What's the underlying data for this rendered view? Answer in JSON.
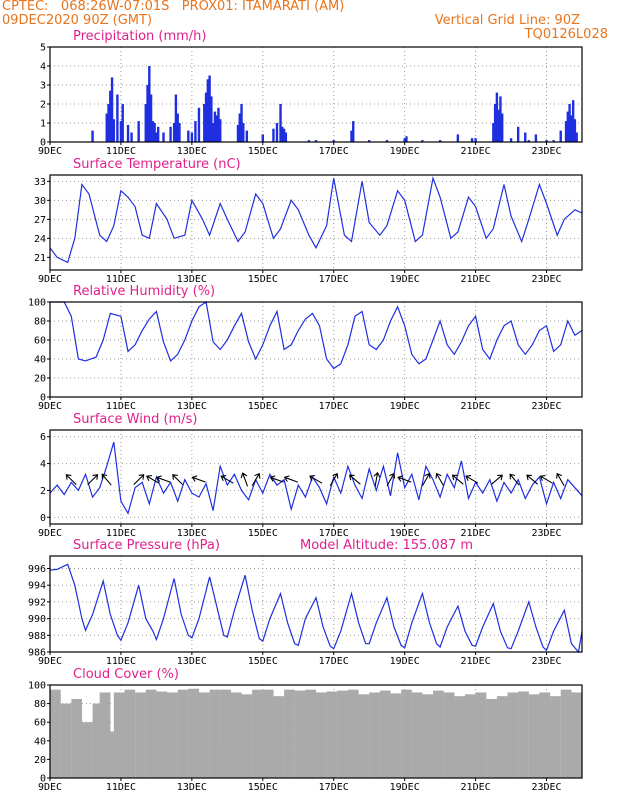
{
  "header": {
    "line1": "CPTEC:   068:26W-07:01S   PROX01: ITAMARATI (AM)",
    "line2_left": "09DEC2020 90Z (GMT)",
    "line2_right": "Vertical Grid Line: 90Z",
    "line3_right": "TQ0126L028"
  },
  "colors": {
    "line": "#1f2fe0",
    "bar": "#1f2fe0",
    "cloud": "#aaaaaa",
    "title": "#e0208c",
    "header": "#e8741c"
  },
  "x_axis": {
    "ticks": [
      9,
      11,
      13,
      15,
      17,
      19,
      21,
      23
    ],
    "labels": [
      "9DEC",
      "11DEC",
      "13DEC",
      "15DEC",
      "17DEC",
      "19DEC",
      "21DEC",
      "23DEC"
    ],
    "range": [
      9,
      24
    ]
  },
  "chart_data": [
    {
      "type": "bar",
      "title": "Precipitation (mm/h)",
      "ylim": [
        0,
        5
      ],
      "yticks": [
        0,
        1,
        2,
        3,
        4,
        5
      ],
      "x": [
        10.2,
        10.6,
        10.65,
        10.7,
        10.75,
        10.8,
        10.9,
        11.0,
        11.05,
        11.2,
        11.3,
        11.5,
        11.7,
        11.75,
        11.8,
        11.85,
        11.9,
        11.95,
        12.0,
        12.05,
        12.2,
        12.4,
        12.5,
        12.55,
        12.6,
        12.65,
        12.9,
        13.0,
        13.1,
        13.2,
        13.35,
        13.4,
        13.45,
        13.5,
        13.55,
        13.6,
        13.65,
        13.7,
        13.75,
        13.8,
        14.3,
        14.35,
        14.4,
        14.45,
        14.55,
        15.0,
        15.3,
        15.4,
        15.5,
        15.55,
        15.6,
        15.65,
        16.3,
        16.5,
        17.0,
        17.5,
        17.55,
        18.0,
        18.5,
        19.0,
        19.05,
        19.5,
        20.0,
        20.5,
        20.9,
        21.0,
        21.5,
        21.55,
        21.6,
        21.65,
        21.7,
        21.75,
        22.0,
        22.2,
        22.4,
        22.5,
        22.7,
        23.0,
        23.2,
        23.4,
        23.55,
        23.6,
        23.65,
        23.7,
        23.75,
        23.8,
        23.85
      ],
      "values": [
        0.6,
        1.5,
        2.0,
        2.7,
        3.4,
        1.2,
        2.5,
        1.1,
        2.0,
        0.9,
        0.5,
        1.1,
        2.0,
        3.0,
        4.0,
        2.5,
        1.1,
        1.0,
        0.5,
        0.8,
        0.5,
        0.8,
        1.0,
        2.5,
        1.5,
        1.0,
        0.6,
        0.5,
        1.1,
        1.8,
        2.0,
        2.6,
        3.3,
        3.5,
        2.4,
        1.0,
        1.6,
        1.4,
        1.8,
        1.2,
        0.9,
        1.5,
        2.0,
        1.0,
        0.6,
        0.4,
        0.7,
        1.0,
        2.0,
        0.8,
        0.7,
        0.5,
        0.1,
        0.1,
        0.1,
        0.6,
        1.1,
        0.1,
        0.1,
        0.2,
        0.3,
        0.1,
        0.1,
        0.4,
        0.2,
        0.2,
        1.0,
        2.0,
        2.6,
        1.7,
        2.4,
        1.5,
        0.2,
        0.8,
        0.5,
        0.1,
        0.4,
        0.1,
        0.1,
        0.6,
        1.1,
        1.6,
        2.0,
        1.4,
        2.2,
        1.2,
        0.5
      ]
    },
    {
      "type": "line",
      "title": "Surface Temperature (nC)",
      "ylim": [
        19,
        34
      ],
      "yticks": [
        21,
        24,
        27,
        30,
        33
      ],
      "x": [
        9.0,
        9.2,
        9.5,
        9.7,
        9.9,
        10.1,
        10.4,
        10.6,
        10.8,
        11.0,
        11.2,
        11.4,
        11.6,
        11.8,
        12.0,
        12.3,
        12.5,
        12.8,
        13.0,
        13.3,
        13.5,
        13.8,
        14.0,
        14.3,
        14.5,
        14.8,
        15.0,
        15.3,
        15.5,
        15.8,
        16.0,
        16.3,
        16.5,
        16.8,
        17.0,
        17.3,
        17.5,
        17.8,
        18.0,
        18.3,
        18.5,
        18.8,
        19.0,
        19.3,
        19.5,
        19.8,
        20.0,
        20.3,
        20.5,
        20.8,
        21.0,
        21.3,
        21.5,
        21.8,
        22.0,
        22.3,
        22.5,
        22.8,
        23.0,
        23.3,
        23.5,
        23.8,
        24.0
      ],
      "values": [
        22.5,
        21.0,
        20.2,
        24.0,
        32.5,
        31.0,
        24.5,
        23.5,
        26.0,
        31.5,
        30.5,
        29.0,
        24.5,
        24.0,
        29.5,
        27.0,
        24.0,
        24.5,
        30.0,
        27.0,
        24.5,
        29.5,
        27.0,
        23.5,
        25.0,
        31.0,
        29.5,
        24.0,
        25.5,
        30.0,
        28.5,
        24.5,
        22.5,
        26.0,
        33.5,
        24.5,
        23.5,
        33.0,
        26.5,
        24.5,
        26.0,
        31.5,
        30.0,
        23.5,
        24.5,
        33.5,
        30.5,
        24.0,
        25.0,
        30.5,
        29.0,
        24.0,
        25.5,
        32.5,
        27.5,
        23.5,
        27.0,
        32.5,
        29.5,
        24.5,
        27.0,
        28.5,
        28.0
      ]
    },
    {
      "type": "line",
      "title": "Relative Humidity (%)",
      "ylim": [
        0,
        100
      ],
      "yticks": [
        0,
        20,
        40,
        60,
        80,
        100
      ],
      "x": [
        9.0,
        9.2,
        9.4,
        9.6,
        9.8,
        10.0,
        10.3,
        10.5,
        10.7,
        11.0,
        11.2,
        11.4,
        11.6,
        11.8,
        12.0,
        12.2,
        12.4,
        12.6,
        12.8,
        13.0,
        13.2,
        13.4,
        13.6,
        13.8,
        14.0,
        14.2,
        14.4,
        14.6,
        14.8,
        15.0,
        15.2,
        15.4,
        15.6,
        15.8,
        16.0,
        16.2,
        16.4,
        16.6,
        16.8,
        17.0,
        17.2,
        17.4,
        17.6,
        17.8,
        18.0,
        18.2,
        18.4,
        18.6,
        18.8,
        19.0,
        19.2,
        19.4,
        19.6,
        19.8,
        20.0,
        20.2,
        20.4,
        20.6,
        20.8,
        21.0,
        21.2,
        21.4,
        21.6,
        21.8,
        22.0,
        22.2,
        22.4,
        22.6,
        22.8,
        23.0,
        23.2,
        23.4,
        23.6,
        23.8,
        24.0
      ],
      "values": [
        100,
        100,
        100,
        85,
        40,
        38,
        42,
        60,
        88,
        85,
        48,
        55,
        70,
        82,
        90,
        58,
        38,
        45,
        60,
        80,
        95,
        100,
        58,
        50,
        60,
        75,
        88,
        58,
        40,
        55,
        75,
        90,
        50,
        55,
        70,
        82,
        88,
        75,
        40,
        30,
        35,
        55,
        85,
        90,
        55,
        50,
        60,
        80,
        95,
        75,
        45,
        35,
        40,
        60,
        80,
        55,
        45,
        58,
        75,
        85,
        50,
        40,
        60,
        75,
        80,
        55,
        45,
        55,
        70,
        75,
        48,
        55,
        80,
        65,
        70
      ]
    },
    {
      "type": "line",
      "title": "Surface Wind (m/s)",
      "ylim": [
        -0.5,
        6.5
      ],
      "yticks": [
        0,
        2,
        4,
        6
      ],
      "x": [
        9.0,
        9.2,
        9.4,
        9.6,
        9.8,
        10.0,
        10.2,
        10.4,
        10.6,
        10.8,
        11.0,
        11.2,
        11.4,
        11.6,
        11.8,
        12.0,
        12.2,
        12.4,
        12.6,
        12.8,
        13.0,
        13.2,
        13.4,
        13.6,
        13.8,
        14.0,
        14.2,
        14.4,
        14.6,
        14.8,
        15.0,
        15.2,
        15.4,
        15.6,
        15.8,
        16.0,
        16.2,
        16.4,
        16.6,
        16.8,
        17.0,
        17.2,
        17.4,
        17.6,
        17.8,
        18.0,
        18.2,
        18.4,
        18.6,
        18.8,
        19.0,
        19.2,
        19.4,
        19.6,
        19.8,
        20.0,
        20.2,
        20.4,
        20.6,
        20.8,
        21.0,
        21.2,
        21.4,
        21.6,
        21.8,
        22.0,
        22.2,
        22.4,
        22.6,
        22.8,
        23.0,
        23.2,
        23.4,
        23.6,
        23.8,
        24.0
      ],
      "values": [
        1.8,
        2.4,
        1.7,
        2.6,
        2.0,
        3.2,
        1.5,
        2.2,
        3.8,
        5.6,
        1.2,
        0.3,
        2.2,
        2.6,
        1.0,
        3.0,
        1.8,
        2.6,
        1.2,
        2.8,
        1.8,
        1.5,
        2.5,
        0.5,
        3.8,
        2.4,
        3.2,
        2.0,
        1.3,
        2.8,
        1.8,
        3.2,
        2.4,
        2.8,
        0.6,
        2.4,
        1.5,
        3.0,
        2.2,
        1.0,
        3.0,
        1.8,
        3.8,
        2.4,
        1.4,
        3.6,
        2.0,
        3.8,
        1.6,
        4.8,
        2.2,
        3.2,
        1.3,
        3.8,
        2.8,
        1.5,
        3.2,
        2.2,
        4.2,
        1.4,
        2.6,
        1.8,
        2.8,
        1.2,
        2.6,
        1.8,
        2.8,
        1.4,
        2.4,
        3.0,
        1.0,
        2.6,
        1.4,
        2.8,
        2.2,
        1.6
      ],
      "arrows_x": [
        9.6,
        10.2,
        10.6,
        11.5,
        11.9,
        12.2,
        12.6,
        13.2,
        14.0,
        14.5,
        14.8,
        15.4,
        15.8,
        16.5,
        17.0,
        17.6,
        18.2,
        18.6,
        19.0,
        19.6,
        20.0,
        20.5,
        20.9,
        21.6,
        22.1,
        22.6,
        23.0,
        23.4
      ],
      "arrows_dir": [
        225,
        315,
        230,
        315,
        210,
        200,
        225,
        200,
        210,
        250,
        300,
        200,
        200,
        210,
        300,
        220,
        280,
        300,
        200,
        300,
        240,
        220,
        210,
        320,
        230,
        220,
        210,
        240
      ]
    },
    {
      "type": "line",
      "title": "Surface Pressure (hPa)",
      "annotation": "Model Altitude: 155.087 m",
      "ylim": [
        986,
        997.5
      ],
      "yticks": [
        986,
        988,
        990,
        992,
        994,
        996
      ],
      "x": [
        9.0,
        9.2,
        9.5,
        9.7,
        9.9,
        10.0,
        10.2,
        10.5,
        10.7,
        10.9,
        11.0,
        11.2,
        11.5,
        11.7,
        11.9,
        12.0,
        12.2,
        12.5,
        12.7,
        12.9,
        13.0,
        13.2,
        13.5,
        13.7,
        13.9,
        14.0,
        14.2,
        14.5,
        14.7,
        14.9,
        15.0,
        15.2,
        15.5,
        15.7,
        15.9,
        16.0,
        16.2,
        16.5,
        16.7,
        16.9,
        17.0,
        17.2,
        17.5,
        17.7,
        17.9,
        18.0,
        18.2,
        18.5,
        18.7,
        18.9,
        19.0,
        19.2,
        19.5,
        19.7,
        19.9,
        20.0,
        20.2,
        20.5,
        20.7,
        20.9,
        21.0,
        21.2,
        21.5,
        21.7,
        21.9,
        22.0,
        22.2,
        22.5,
        22.7,
        22.9,
        23.0,
        23.2,
        23.5,
        23.7,
        23.9,
        24.0
      ],
      "values": [
        995.8,
        995.9,
        996.5,
        994.0,
        990.0,
        988.6,
        990.5,
        994.5,
        990.5,
        988.0,
        987.4,
        989.5,
        994.0,
        990.0,
        988.5,
        987.5,
        990.0,
        994.8,
        990.5,
        988.0,
        987.7,
        990.0,
        995.0,
        991.5,
        988.0,
        987.8,
        991.0,
        995.2,
        991.0,
        987.6,
        987.3,
        990.0,
        993.0,
        989.5,
        987.0,
        986.8,
        990.0,
        992.5,
        989.0,
        986.7,
        986.4,
        988.5,
        993.0,
        989.5,
        987.0,
        987.0,
        989.5,
        992.5,
        989.0,
        986.8,
        986.5,
        989.5,
        993.0,
        989.5,
        987.0,
        986.6,
        989.0,
        991.5,
        988.5,
        986.8,
        986.7,
        989.0,
        991.8,
        988.5,
        986.5,
        986.4,
        988.5,
        992.0,
        989.0,
        986.6,
        986.2,
        988.5,
        991.0,
        987.0,
        986.0,
        988.5
      ]
    },
    {
      "type": "bar",
      "title": "Cloud Cover (%)",
      "ylim": [
        0,
        100
      ],
      "yticks": [
        0,
        20,
        40,
        60,
        80,
        100
      ],
      "x": [
        9.0,
        9.3,
        9.6,
        9.9,
        10.2,
        10.4,
        10.5,
        10.8,
        11.1,
        11.4,
        11.7,
        12.0,
        12.3,
        12.6,
        12.9,
        13.2,
        13.5,
        13.7,
        13.8,
        14.1,
        14.4,
        14.7,
        15.0,
        15.3,
        15.6,
        15.9,
        16.2,
        16.5,
        16.8,
        17.1,
        17.4,
        17.7,
        18.0,
        18.3,
        18.6,
        18.9,
        19.2,
        19.5,
        19.8,
        20.1,
        20.4,
        20.7,
        21.0,
        21.3,
        21.6,
        21.9,
        22.2,
        22.5,
        22.8,
        23.1,
        23.4,
        23.7
      ],
      "values": [
        95,
        80,
        85,
        60,
        80,
        92,
        50,
        92,
        95,
        92,
        95,
        93,
        92,
        95,
        96,
        92,
        95,
        40,
        95,
        92,
        90,
        95,
        95,
        88,
        95,
        94,
        95,
        92,
        93,
        94,
        95,
        90,
        92,
        94,
        91,
        95,
        92,
        90,
        94,
        92,
        88,
        90,
        92,
        85,
        88,
        92,
        93,
        90,
        92,
        88,
        95,
        92
      ]
    }
  ]
}
